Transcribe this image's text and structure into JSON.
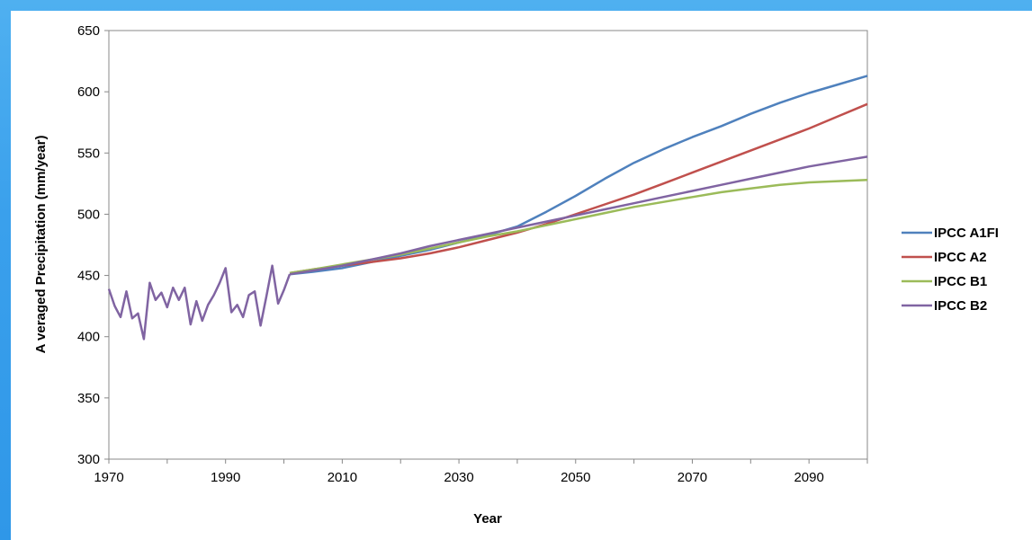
{
  "colors": {
    "background": "#3aa0ec",
    "a1fi": "#4f81bd",
    "a2": "#c0504d",
    "b1": "#9bbb59",
    "b2": "#8064a2",
    "observed": "#8064a2"
  },
  "chart_data": {
    "type": "line",
    "title": "",
    "xlabel": "Year",
    "ylabel": "A veraged Precipitation (mm/year)",
    "xlim": [
      1970,
      2100
    ],
    "ylim": [
      300,
      650
    ],
    "xticks": [
      1970,
      1990,
      2010,
      2030,
      2050,
      2070,
      2090
    ],
    "yticks": [
      300,
      350,
      400,
      450,
      500,
      550,
      600,
      650
    ],
    "grid": false,
    "legend_position": "right",
    "historical": {
      "x": [
        1970,
        1971,
        1972,
        1973,
        1974,
        1975,
        1976,
        1977,
        1978,
        1979,
        1980,
        1981,
        1982,
        1983,
        1984,
        1985,
        1986,
        1987,
        1988,
        1989,
        1990,
        1991,
        1992,
        1993,
        1994,
        1995,
        1996,
        1997,
        1998,
        1999,
        2000,
        2001
      ],
      "y": [
        439,
        425,
        416,
        437,
        415,
        419,
        398,
        444,
        430,
        436,
        424,
        440,
        430,
        440,
        410,
        429,
        413,
        426,
        434,
        444,
        456,
        420,
        426,
        416,
        434,
        437,
        409,
        433,
        458,
        427,
        438,
        451
      ]
    },
    "series": [
      {
        "name": "IPCC A1FI",
        "color": "#4f81bd",
        "x": [
          2001,
          2005,
          2010,
          2015,
          2020,
          2025,
          2030,
          2035,
          2040,
          2045,
          2050,
          2055,
          2060,
          2065,
          2070,
          2075,
          2080,
          2085,
          2090,
          2095,
          2100
        ],
        "y": [
          451,
          453,
          456,
          461,
          466,
          471,
          477,
          483,
          490,
          502,
          515,
          529,
          542,
          553,
          563,
          572,
          582,
          591,
          599,
          606,
          613
        ]
      },
      {
        "name": "IPCC A2",
        "color": "#c0504d",
        "x": [
          2001,
          2005,
          2010,
          2015,
          2020,
          2025,
          2030,
          2035,
          2040,
          2045,
          2050,
          2055,
          2060,
          2065,
          2070,
          2075,
          2080,
          2085,
          2090,
          2095,
          2100
        ],
        "y": [
          452,
          455,
          458,
          461,
          464,
          468,
          473,
          479,
          485,
          492,
          500,
          508,
          516,
          525,
          534,
          543,
          552,
          561,
          570,
          580,
          590
        ]
      },
      {
        "name": "IPCC B1",
        "color": "#9bbb59",
        "x": [
          2001,
          2005,
          2010,
          2015,
          2020,
          2025,
          2030,
          2035,
          2040,
          2045,
          2050,
          2055,
          2060,
          2065,
          2070,
          2075,
          2080,
          2085,
          2090,
          2095,
          2100
        ],
        "y": [
          452,
          455,
          459,
          463,
          467,
          472,
          477,
          482,
          486,
          491,
          496,
          501,
          506,
          510,
          514,
          518,
          521,
          524,
          526,
          527,
          528
        ]
      },
      {
        "name": "IPCC B2",
        "color": "#8064a2",
        "x": [
          2001,
          2005,
          2010,
          2015,
          2020,
          2025,
          2030,
          2035,
          2040,
          2045,
          2050,
          2055,
          2060,
          2065,
          2070,
          2075,
          2080,
          2085,
          2090,
          2095,
          2100
        ],
        "y": [
          451,
          454,
          458,
          463,
          468,
          474,
          479,
          484,
          489,
          494,
          499,
          504,
          509,
          514,
          519,
          524,
          529,
          534,
          539,
          543,
          547
        ]
      }
    ]
  }
}
